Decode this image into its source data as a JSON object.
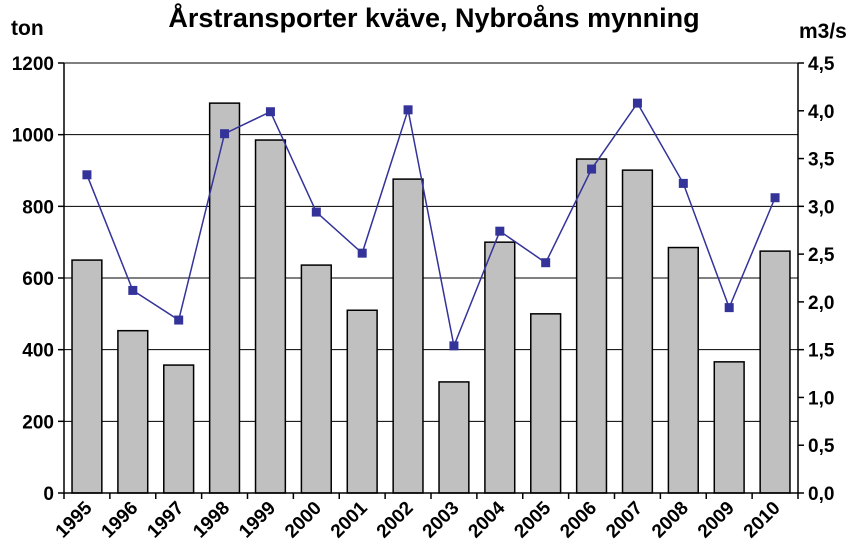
{
  "chart_data": {
    "type": "bar",
    "title": "Årstransporter kväve, Nybroåns mynning",
    "ylabel_left": "ton",
    "ylabel_right": "m3/s",
    "categories": [
      "1995",
      "1996",
      "1997",
      "1998",
      "1999",
      "2000",
      "2001",
      "2002",
      "2003",
      "2004",
      "2005",
      "2006",
      "2007",
      "2008",
      "2009",
      "2010"
    ],
    "series": [
      {
        "type": "bar",
        "axis": "left",
        "values": [
          650,
          453,
          357,
          1088,
          985,
          636,
          510,
          876,
          310,
          700,
          500,
          932,
          901,
          685,
          366,
          675
        ]
      },
      {
        "type": "line",
        "axis": "right",
        "values": [
          3.33,
          2.12,
          1.81,
          3.76,
          3.99,
          2.94,
          2.51,
          4.01,
          1.54,
          2.74,
          2.41,
          3.39,
          4.08,
          3.24,
          1.94,
          3.09
        ]
      }
    ],
    "ylim_left": [
      0,
      1200
    ],
    "ylim_right": [
      0,
      4.5
    ],
    "yticks_left": [
      "0",
      "200",
      "400",
      "600",
      "800",
      "1000",
      "1200"
    ],
    "yticks_right": [
      "0,0",
      "0,5",
      "1,0",
      "1,5",
      "2,0",
      "2,5",
      "3,0",
      "3,5",
      "4,0",
      "4,5"
    ],
    "grid": true,
    "colors": {
      "bar_fill": "#c0c0c0",
      "bar_stroke": "#000000",
      "line": "#33339a",
      "marker": "#33339a"
    }
  }
}
